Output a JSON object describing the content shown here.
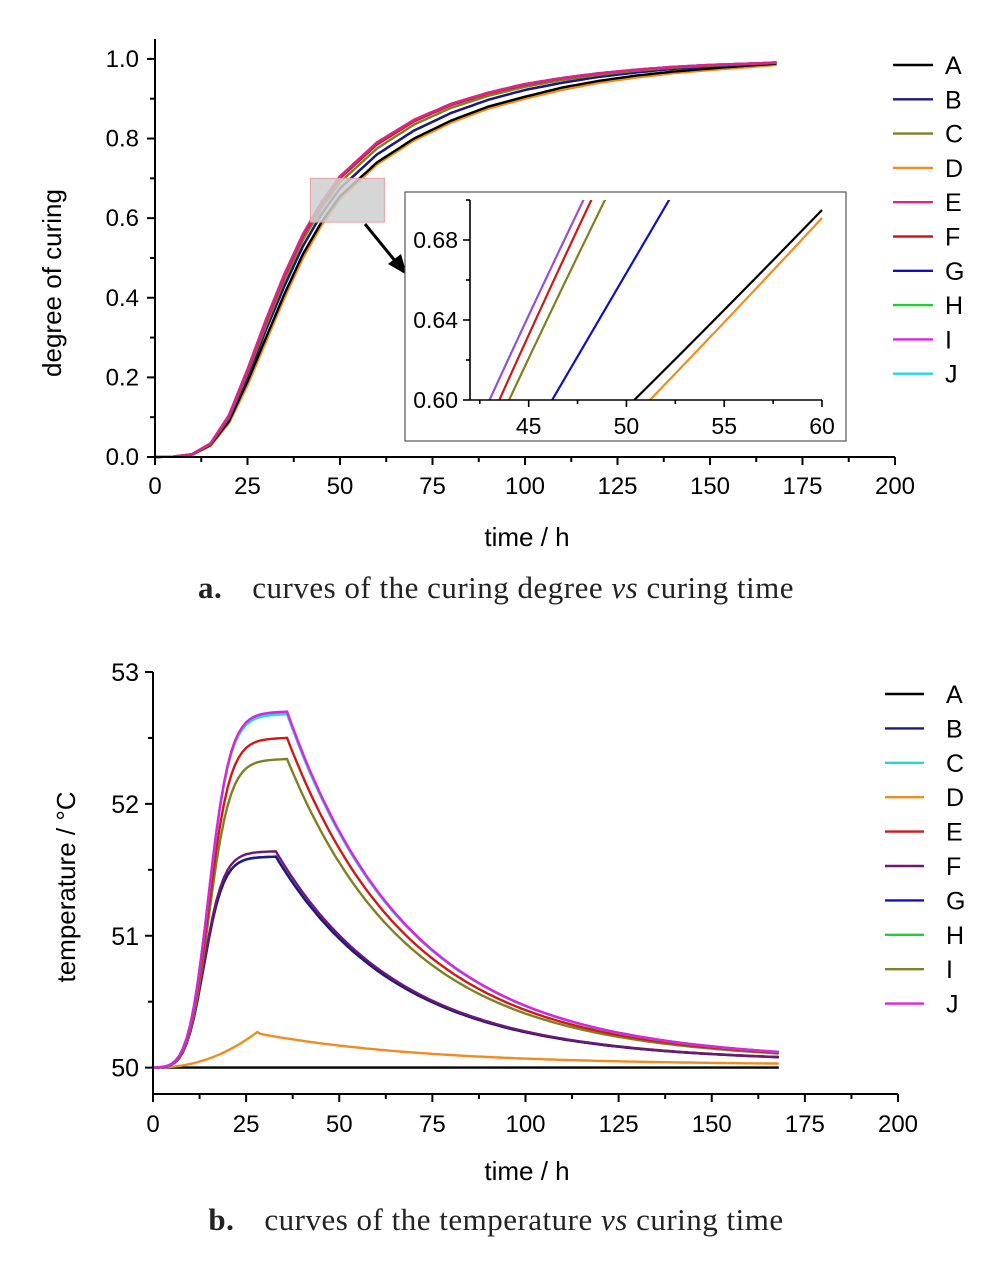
{
  "captions": {
    "a": {
      "label": "a.",
      "pre": "curves of the curing degree ",
      "vs": "vs",
      "post": " curing time"
    },
    "b": {
      "label": "b.",
      "pre": "curves of the temperature ",
      "vs": "vs",
      "post": " curing time"
    }
  },
  "chart_data": [
    {
      "id": "a",
      "type": "line",
      "title": "",
      "xlabel": "time / h",
      "ylabel": "degree of curing",
      "xlim": [
        0,
        200
      ],
      "ylim": [
        0,
        1.05
      ],
      "xticks": [
        "0",
        "25",
        "50",
        "75",
        "100",
        "125",
        "150",
        "175",
        "200"
      ],
      "yticks": [
        "0.0",
        "0.2",
        "0.4",
        "0.6",
        "0.8",
        "1.0"
      ],
      "legend_position": "right",
      "legend_order": [
        "A",
        "B",
        "C",
        "D",
        "E",
        "F",
        "G",
        "H",
        "I",
        "J"
      ],
      "x": [
        0,
        5,
        10,
        15,
        20,
        25,
        30,
        35,
        40,
        45,
        50,
        60,
        70,
        80,
        90,
        100,
        110,
        120,
        130,
        140,
        150,
        160,
        168
      ],
      "series": [
        {
          "name": "A",
          "color": "#000000",
          "values": [
            0,
            0.001,
            0.006,
            0.03,
            0.09,
            0.19,
            0.3,
            0.41,
            0.51,
            0.59,
            0.655,
            0.74,
            0.8,
            0.845,
            0.88,
            0.905,
            0.928,
            0.945,
            0.958,
            0.968,
            0.976,
            0.983,
            0.988
          ]
        },
        {
          "name": "B",
          "color": "#1a1a80",
          "values": [
            0,
            0.001,
            0.006,
            0.031,
            0.095,
            0.2,
            0.32,
            0.43,
            0.53,
            0.61,
            0.675,
            0.76,
            0.82,
            0.864,
            0.897,
            0.922,
            0.94,
            0.955,
            0.966,
            0.975,
            0.981,
            0.986,
            0.99
          ]
        },
        {
          "name": "C",
          "color": "#808020",
          "values": [
            0,
            0.001,
            0.006,
            0.032,
            0.1,
            0.21,
            0.33,
            0.445,
            0.545,
            0.625,
            0.69,
            0.775,
            0.835,
            0.877,
            0.907,
            0.93,
            0.947,
            0.96,
            0.97,
            0.978,
            0.983,
            0.987,
            0.99
          ]
        },
        {
          "name": "D",
          "color": "#f08c1e",
          "values": [
            0,
            0.001,
            0.005,
            0.028,
            0.085,
            0.18,
            0.29,
            0.4,
            0.5,
            0.582,
            0.648,
            0.735,
            0.795,
            0.84,
            0.875,
            0.9,
            0.922,
            0.94,
            0.953,
            0.964,
            0.972,
            0.979,
            0.985
          ]
        },
        {
          "name": "E",
          "color": "#e0208c",
          "values": [
            0,
            0.001,
            0.007,
            0.034,
            0.105,
            0.22,
            0.345,
            0.46,
            0.56,
            0.64,
            0.705,
            0.79,
            0.847,
            0.887,
            0.915,
            0.937,
            0.952,
            0.964,
            0.973,
            0.98,
            0.985,
            0.988,
            0.991
          ]
        },
        {
          "name": "F",
          "color": "#d01818",
          "values": [
            0,
            0.001,
            0.007,
            0.033,
            0.103,
            0.215,
            0.34,
            0.455,
            0.555,
            0.635,
            0.7,
            0.785,
            0.843,
            0.884,
            0.913,
            0.935,
            0.951,
            0.963,
            0.972,
            0.979,
            0.984,
            0.988,
            0.991
          ]
        },
        {
          "name": "G",
          "color": "#1010c0",
          "values": [
            0,
            0.001,
            0.006,
            0.031,
            0.095,
            0.2,
            0.32,
            0.43,
            0.53,
            0.61,
            0.675,
            0.76,
            0.82,
            0.864,
            0.897,
            0.922,
            0.94,
            0.955,
            0.966,
            0.975,
            0.981,
            0.986,
            0.99
          ]
        },
        {
          "name": "H",
          "color": "#20d030",
          "values": [
            0,
            0.001,
            0.007,
            0.034,
            0.105,
            0.22,
            0.345,
            0.46,
            0.56,
            0.64,
            0.705,
            0.79,
            0.847,
            0.887,
            0.915,
            0.937,
            0.952,
            0.964,
            0.973,
            0.98,
            0.985,
            0.988,
            0.991
          ]
        },
        {
          "name": "I",
          "color": "#e020e0",
          "values": [
            0,
            0.001,
            0.007,
            0.034,
            0.105,
            0.22,
            0.345,
            0.46,
            0.56,
            0.64,
            0.705,
            0.79,
            0.847,
            0.887,
            0.915,
            0.937,
            0.952,
            0.964,
            0.973,
            0.98,
            0.985,
            0.988,
            0.991
          ]
        },
        {
          "name": "J",
          "color": "#20d8e0",
          "values": [
            0,
            0.001,
            0.007,
            0.034,
            0.105,
            0.22,
            0.345,
            0.46,
            0.56,
            0.64,
            0.705,
            0.79,
            0.847,
            0.887,
            0.915,
            0.937,
            0.952,
            0.964,
            0.973,
            0.98,
            0.985,
            0.988,
            0.991
          ]
        }
      ],
      "inset": {
        "source_region": {
          "xlim": [
            42,
            62
          ],
          "ylim": [
            0.59,
            0.7
          ]
        },
        "xlim": [
          42,
          60
        ],
        "ylim": [
          0.6,
          0.7
        ],
        "xticks": [
          "45",
          "50",
          "55",
          "60"
        ],
        "yticks": [
          "0.60",
          "0.64",
          "0.68"
        ],
        "lines": [
          {
            "series": "E",
            "color": "#9050e0",
            "x0": 43.0,
            "x1": 47.9
          },
          {
            "series": "F",
            "color": "#d01818",
            "x0": 43.5,
            "x1": 48.3
          },
          {
            "series": "C",
            "color": "#808020",
            "x0": 44.0,
            "x1": 49.0
          },
          {
            "series": "B",
            "color": "#1010c0",
            "x0": 46.2,
            "x1": 52.3
          },
          {
            "series": "A",
            "color": "#000000",
            "x0": 50.4,
            "x1": 60.0,
            "yend": 0.695
          },
          {
            "series": "D",
            "color": "#f08c1e",
            "x0": 51.2,
            "x1": 60.0,
            "yend": 0.691
          }
        ]
      }
    },
    {
      "id": "b",
      "type": "line",
      "title": "",
      "xlabel": "time / h",
      "ylabel": "temperature / °C",
      "xlim": [
        0,
        200
      ],
      "ylim": [
        49.8,
        53
      ],
      "xticks": [
        "0",
        "25",
        "50",
        "75",
        "100",
        "125",
        "150",
        "175",
        "200"
      ],
      "yticks": [
        "50",
        "51",
        "52",
        "53"
      ],
      "legend_position": "right",
      "legend_order": [
        "A",
        "B",
        "C",
        "D",
        "E",
        "F",
        "G",
        "H",
        "I",
        "J"
      ],
      "x": [
        0,
        5,
        10,
        15,
        20,
        25,
        28,
        30,
        35,
        40,
        45,
        50,
        60,
        70,
        80,
        90,
        100,
        110,
        120,
        130,
        140,
        150,
        160,
        168
      ],
      "series": [
        {
          "name": "A",
          "color": "#000000",
          "peak": 0.0
        },
        {
          "name": "B",
          "color": "#1a1a80",
          "peak": 1.6
        },
        {
          "name": "C",
          "color": "#20d8e0",
          "peak": 2.68
        },
        {
          "name": "D",
          "color": "#f08c1e",
          "peak": 0.27
        },
        {
          "name": "E",
          "color": "#d01818",
          "peak": 2.5
        },
        {
          "name": "F",
          "color": "#701870",
          "peak": 1.64
        },
        {
          "name": "G",
          "color": "#1010c0",
          "peak": 1.6
        },
        {
          "name": "H",
          "color": "#20d030",
          "peak": 2.69
        },
        {
          "name": "I",
          "color": "#808020",
          "peak": 2.34
        },
        {
          "name": "J",
          "color": "#e020e0",
          "peak": 2.7
        }
      ]
    }
  ]
}
